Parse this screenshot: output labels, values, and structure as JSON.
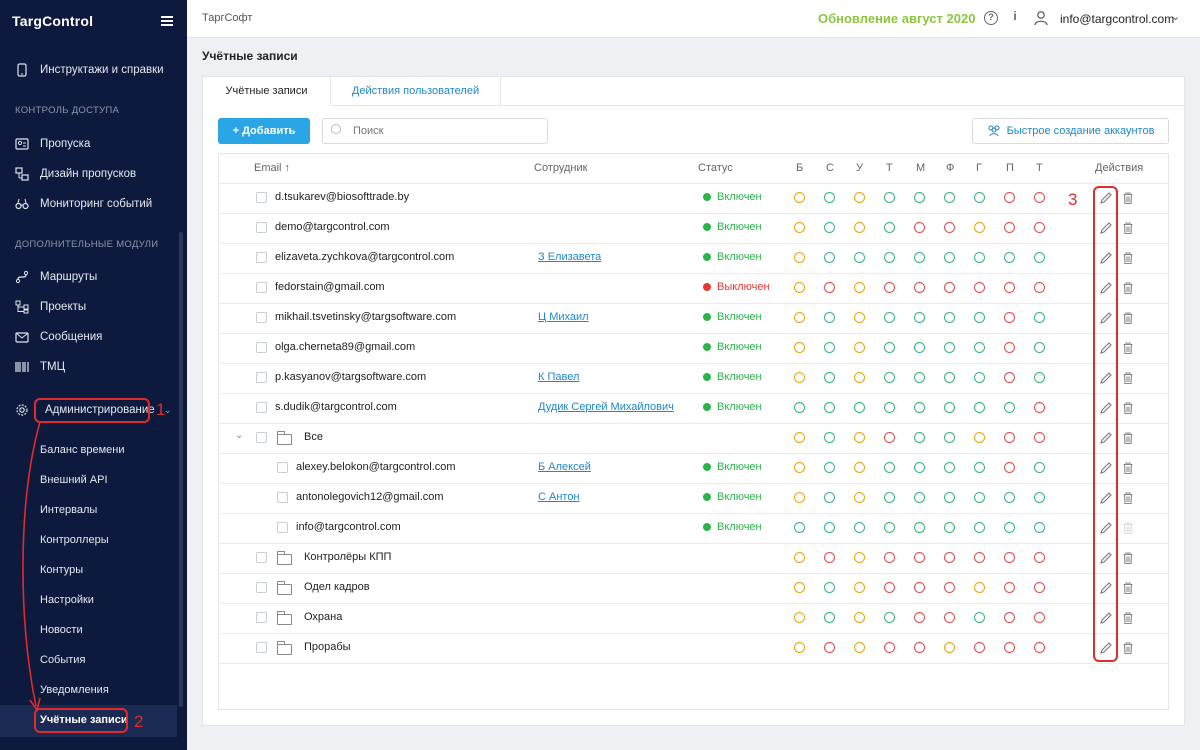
{
  "brand": "TargControl",
  "sidebar": {
    "top_item": "Инструктажи и справки",
    "sections": [
      "КОНТРОЛЬ ДОСТУПА",
      "ДОПОЛНИТЕЛЬНЫЕ МОДУЛИ"
    ],
    "access_items": [
      "Пропуска",
      "Дизайн пропусков",
      "Мониторинг событий"
    ],
    "module_items": [
      "Маршруты",
      "Проекты",
      "Сообщения",
      "ТМЦ"
    ],
    "admin_label": "Администрирование",
    "admin_subitems": [
      "Баланс времени",
      "Внешний API",
      "Интервалы",
      "Контроллеры",
      "Контуры",
      "Настройки",
      "Новости",
      "События",
      "Уведомления",
      "Учётные записи"
    ]
  },
  "topbar": {
    "org": "ТаргСофт",
    "update": "Обновление август 2020",
    "help_icon": "?",
    "info_icon": "i",
    "user_email": "info@targcontrol.com"
  },
  "page_title": "Учётные записи",
  "tabs": [
    "Учётные записи",
    "Действия пользователей"
  ],
  "toolbar": {
    "add_label": "+ Добавить",
    "search_placeholder": "Поиск",
    "quick_label": "Быстрое создание аккаунтов"
  },
  "table": {
    "headers": {
      "email": "Email ↑",
      "employee": "Сотрудник",
      "status": "Статус",
      "perm_cols": [
        "Б",
        "С",
        "У",
        "Т",
        "М",
        "Ф",
        "Г",
        "П",
        "Т"
      ],
      "actions": "Действия"
    },
    "rows": [
      {
        "type": "user",
        "email": "d.tsukarev@biosofttrade.by",
        "employee": "",
        "status": "Включен",
        "on": true,
        "perms": [
          "o",
          "g",
          "o",
          "g",
          "g",
          "g",
          "g",
          "r",
          "r"
        ]
      },
      {
        "type": "user",
        "email": "demo@targcontrol.com",
        "employee": "",
        "status": "Включен",
        "on": true,
        "perms": [
          "o",
          "g",
          "o",
          "g",
          "r",
          "r",
          "o",
          "r",
          "r"
        ]
      },
      {
        "type": "user",
        "email": "elizaveta.zychkova@targcontrol.com",
        "employee": "З Елизавета",
        "status": "Включен",
        "on": true,
        "perms": [
          "o",
          "g",
          "g",
          "g",
          "g",
          "g",
          "g",
          "g",
          "g"
        ]
      },
      {
        "type": "user",
        "email": "fedorstain@gmail.com",
        "employee": "",
        "status": "Выключен",
        "on": false,
        "perms": [
          "o",
          "r",
          "o",
          "r",
          "r",
          "r",
          "r",
          "r",
          "r"
        ]
      },
      {
        "type": "user",
        "email": "mikhail.tsvetinsky@targsoftware.com",
        "employee": "Ц Михаил",
        "status": "Включен",
        "on": true,
        "perms": [
          "o",
          "g",
          "o",
          "g",
          "g",
          "g",
          "g",
          "r",
          "g"
        ]
      },
      {
        "type": "user",
        "email": "olga.cherneta89@gmail.com",
        "employee": "",
        "status": "Включен",
        "on": true,
        "perms": [
          "o",
          "g",
          "o",
          "g",
          "g",
          "g",
          "g",
          "r",
          "g"
        ]
      },
      {
        "type": "user",
        "email": "p.kasyanov@targsoftware.com",
        "employee": "К Павел",
        "status": "Включен",
        "on": true,
        "perms": [
          "o",
          "g",
          "o",
          "g",
          "g",
          "g",
          "g",
          "r",
          "g"
        ]
      },
      {
        "type": "user",
        "email": "s.dudik@targcontrol.com",
        "employee": "Дудик Сергей Михайлович",
        "status": "Включен",
        "on": true,
        "perms": [
          "g",
          "g",
          "g",
          "g",
          "g",
          "g",
          "g",
          "g",
          "r"
        ]
      },
      {
        "type": "folder",
        "email": "Все",
        "expanded": true,
        "perms": [
          "o",
          "g",
          "o",
          "r",
          "g",
          "g",
          "o",
          "r",
          "r"
        ]
      },
      {
        "type": "child",
        "email": "alexey.belokon@targcontrol.com",
        "employee": "Б Алексей",
        "status": "Включен",
        "on": true,
        "perms": [
          "o",
          "g",
          "o",
          "g",
          "g",
          "g",
          "g",
          "r",
          "g"
        ]
      },
      {
        "type": "child",
        "email": "antonolegovich12@gmail.com",
        "employee": "С Антон",
        "status": "Включен",
        "on": true,
        "perms": [
          "o",
          "g",
          "o",
          "g",
          "g",
          "g",
          "g",
          "g",
          "g"
        ]
      },
      {
        "type": "child",
        "email": "info@targcontrol.com",
        "employee": "",
        "status": "Включен",
        "on": true,
        "perms": [
          "g",
          "g",
          "g",
          "g",
          "g",
          "g",
          "g",
          "g",
          "g"
        ]
      },
      {
        "type": "folder",
        "email": "Контролёры КПП",
        "perms": [
          "o",
          "r",
          "o",
          "r",
          "r",
          "r",
          "r",
          "r",
          "r"
        ]
      },
      {
        "type": "folder",
        "email": "Одел кадров",
        "perms": [
          "o",
          "g",
          "o",
          "r",
          "r",
          "r",
          "o",
          "r",
          "r"
        ]
      },
      {
        "type": "folder",
        "email": "Охрана",
        "perms": [
          "o",
          "g",
          "o",
          "g",
          "r",
          "r",
          "g",
          "r",
          "r"
        ]
      },
      {
        "type": "folder",
        "email": "Прорабы",
        "perms": [
          "o",
          "r",
          "o",
          "r",
          "r",
          "o",
          "r",
          "r",
          "r"
        ]
      }
    ]
  },
  "annotations": [
    "1",
    "2",
    "3"
  ],
  "colors": {
    "sidebar_bg": "#0e1a3d",
    "accent": "#2aa6e6",
    "link": "#1e88c8",
    "update_green": "#8cc63f",
    "status_on": "#2cb34a",
    "status_off": "#e53935",
    "perm_orange": "#f0a500",
    "perm_green": "#2fb87a",
    "perm_red": "#e8484b",
    "annotation_red": "#e02b2b"
  }
}
